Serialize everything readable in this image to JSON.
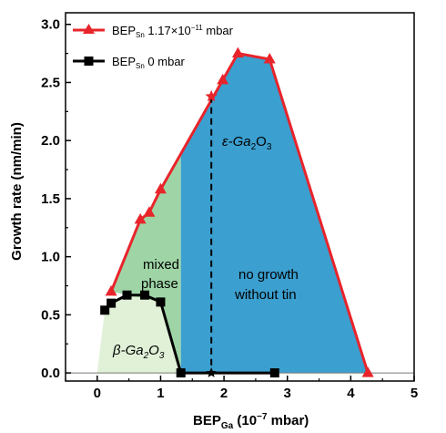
{
  "chart_data": {
    "type": "line",
    "xlabel_main": "BEP",
    "xlabel_sub": "Ga",
    "xlabel_unit": " (10",
    "xlabel_exp": "−7",
    "xlabel_tail": " mbar)",
    "ylabel": "Growth rate (nm/min)",
    "xlim": [
      -0.5,
      5
    ],
    "ylim": [
      -0.07,
      3.1
    ],
    "x_ticks": [
      0,
      1,
      2,
      3,
      4,
      5
    ],
    "y_ticks": [
      0.0,
      0.5,
      1.0,
      1.5,
      2.0,
      2.5,
      3.0
    ],
    "x_tick_labels": [
      "0",
      "1",
      "2",
      "3",
      "4",
      "5"
    ],
    "y_tick_labels": [
      "0.0",
      "0.5",
      "1.0",
      "1.5",
      "2.0",
      "2.5",
      "3.0"
    ],
    "grid": false,
    "legend_position": "top-left",
    "series": [
      {
        "name_main": "BEP",
        "name_sub": "Sn",
        "name_value": " 1.17×10",
        "name_exp": "−11",
        "name_unit": " mbar",
        "color": "#e8242b",
        "marker": "triangle",
        "x": [
          0.22,
          0.68,
          0.82,
          1.0,
          1.98,
          2.22,
          2.72,
          4.27
        ],
        "y": [
          0.7,
          1.32,
          1.38,
          1.58,
          2.52,
          2.75,
          2.7,
          0.0
        ]
      },
      {
        "name_main": "BEP",
        "name_sub": "Sn",
        "name_value": " 0 mbar",
        "color": "#000000",
        "marker": "square",
        "x": [
          0.12,
          0.22,
          0.47,
          0.75,
          1.0,
          1.32,
          2.8
        ],
        "y": [
          0.54,
          0.6,
          0.67,
          0.67,
          0.61,
          0.0,
          0.0
        ]
      }
    ],
    "regions": [
      {
        "label_main": "β-Ga",
        "label_sub": "2",
        "label_mid": "O",
        "label_sub2": "3",
        "color": "#e0f1d8",
        "polygon": [
          [
            0.0,
            0.0
          ],
          [
            0.12,
            0.54
          ],
          [
            0.22,
            0.6
          ],
          [
            0.47,
            0.67
          ],
          [
            0.75,
            0.67
          ],
          [
            1.0,
            0.61
          ],
          [
            1.32,
            0.0
          ]
        ]
      },
      {
        "label_line1": "mixed",
        "label_line2": "phase",
        "color": "#9fd5a6",
        "polygon": [
          [
            1.0,
            0.61
          ],
          [
            0.22,
            0.7
          ],
          [
            0.68,
            1.32
          ],
          [
            0.82,
            1.38
          ],
          [
            1.0,
            1.58
          ],
          [
            1.32,
            1.88
          ],
          [
            1.32,
            0.0
          ]
        ]
      },
      {
        "label_main": "ε-Ga",
        "label_sub": "2",
        "label_mid": "O",
        "label_sub2": "3",
        "label_line1": "no growth",
        "label_line2": "without tin",
        "color": "#3b9fd0",
        "polygon": [
          [
            1.32,
            1.88
          ],
          [
            1.98,
            2.52
          ],
          [
            2.22,
            2.75
          ],
          [
            2.72,
            2.7
          ],
          [
            4.27,
            0.0
          ],
          [
            1.32,
            0.0
          ]
        ]
      }
    ],
    "star_marker": {
      "x": 1.8,
      "y_top": 2.38,
      "y_bottom": 0.0,
      "color": "#e8242b"
    }
  }
}
